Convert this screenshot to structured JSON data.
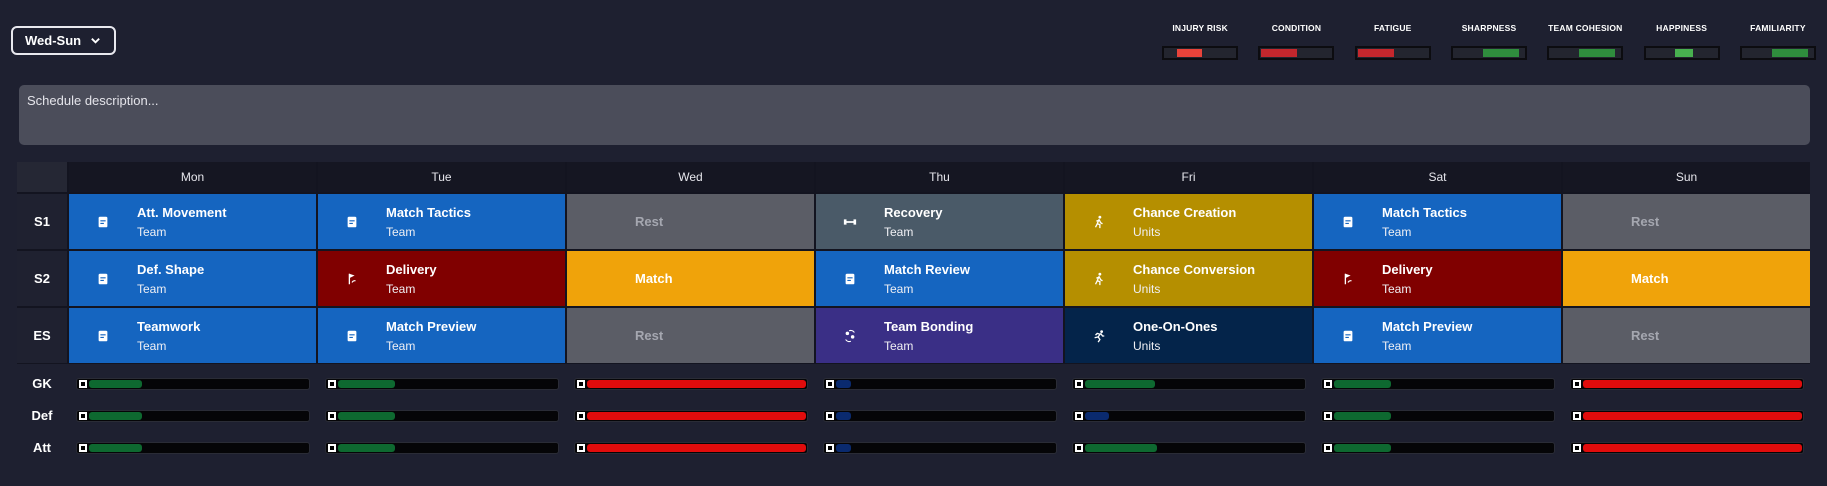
{
  "period": {
    "label": "Wed-Sun",
    "icon": "chevron-down-icon"
  },
  "stats": [
    {
      "label": "INJURY RISK",
      "level": 0.35,
      "color": "#e8433a",
      "offset": 0.2
    },
    {
      "label": "CONDITION",
      "level": 0.5,
      "color": "#c4272d",
      "offset": 0
    },
    {
      "label": "FATIGUE",
      "level": 0.5,
      "color": "#c4272d",
      "offset": 0
    },
    {
      "label": "SHARPNESS",
      "level": 0.5,
      "color": "#2f8d3d",
      "offset": 0.5
    },
    {
      "label": "TEAM COHESION",
      "level": 0.5,
      "color": "#2f8d3d",
      "offset": 0.5
    },
    {
      "label": "HAPPINESS",
      "level": 0.25,
      "color": "#48b04f",
      "offset": 0.5
    },
    {
      "label": "FAMILIARITY",
      "level": 0.5,
      "color": "#2f8d3d",
      "offset": 0.5
    }
  ],
  "description": {
    "placeholder": "Schedule description..."
  },
  "days": [
    "Mon",
    "Tue",
    "Wed",
    "Thu",
    "Fri",
    "Sat",
    "Sun"
  ],
  "rows": [
    {
      "label": "S1",
      "cells": [
        {
          "title": "Att. Movement",
          "sub": "Team",
          "color": "#1565c0",
          "icon": "tactics-board-icon"
        },
        {
          "title": "Match Tactics",
          "sub": "Team",
          "color": "#1565c0",
          "icon": "tactics-board-icon"
        },
        {
          "title": "Rest",
          "sub": "",
          "color": "#5b5d66",
          "icon": "",
          "type": "rest"
        },
        {
          "title": "Recovery",
          "sub": "Team",
          "color": "#4a5a68",
          "icon": "dumbbell-icon"
        },
        {
          "title": "Chance Creation",
          "sub": "Units",
          "color": "#b58f00",
          "icon": "running-player-icon"
        },
        {
          "title": "Match Tactics",
          "sub": "Team",
          "color": "#1565c0",
          "icon": "tactics-board-icon"
        },
        {
          "title": "Rest",
          "sub": "",
          "color": "#5b5d66",
          "icon": "",
          "type": "rest"
        }
      ]
    },
    {
      "label": "S2",
      "cells": [
        {
          "title": "Def. Shape",
          "sub": "Team",
          "color": "#1565c0",
          "icon": "tactics-board-icon"
        },
        {
          "title": "Delivery",
          "sub": "Team",
          "color": "#800000",
          "icon": "corner-flag-icon"
        },
        {
          "title": "Match",
          "sub": "",
          "color": "#f0a30a",
          "icon": "",
          "type": "match"
        },
        {
          "title": "Match Review",
          "sub": "Team",
          "color": "#1565c0",
          "icon": "tactics-board-icon"
        },
        {
          "title": "Chance Conversion",
          "sub": "Units",
          "color": "#b58f00",
          "icon": "running-player-icon"
        },
        {
          "title": "Delivery",
          "sub": "Team",
          "color": "#800000",
          "icon": "corner-flag-icon"
        },
        {
          "title": "Match",
          "sub": "",
          "color": "#f0a30a",
          "icon": "",
          "type": "match"
        }
      ]
    },
    {
      "label": "ES",
      "cells": [
        {
          "title": "Teamwork",
          "sub": "Team",
          "color": "#1565c0",
          "icon": "tactics-board-icon"
        },
        {
          "title": "Match Preview",
          "sub": "Team",
          "color": "#1565c0",
          "icon": "tactics-board-icon"
        },
        {
          "title": "Rest",
          "sub": "",
          "color": "#5b5d66",
          "icon": "",
          "type": "rest"
        },
        {
          "title": "Team Bonding",
          "sub": "Team",
          "color": "#3a2f86",
          "icon": "team-bonding-icon"
        },
        {
          "title": "One-On-Ones",
          "sub": "Units",
          "color": "#04244a",
          "icon": "sprint-icon"
        },
        {
          "title": "Match Preview",
          "sub": "Team",
          "color": "#1565c0",
          "icon": "tactics-board-icon"
        },
        {
          "title": "Rest",
          "sub": "",
          "color": "#5b5d66",
          "icon": "",
          "type": "rest"
        }
      ]
    }
  ],
  "positions": [
    {
      "label": "GK",
      "values": [
        0.24,
        0.26,
        1.0,
        0.07,
        0.32,
        0.26,
        1.0
      ]
    },
    {
      "label": "Def",
      "values": [
        0.24,
        0.26,
        1.0,
        0.07,
        0.11,
        0.26,
        1.0
      ]
    },
    {
      "label": "Att",
      "values": [
        0.24,
        0.26,
        1.0,
        0.07,
        0.33,
        0.26,
        1.0
      ]
    }
  ],
  "position_colors": {
    "low": "#0e6930",
    "high": "#e10c0c",
    "minimal": "#0a2a6e"
  }
}
